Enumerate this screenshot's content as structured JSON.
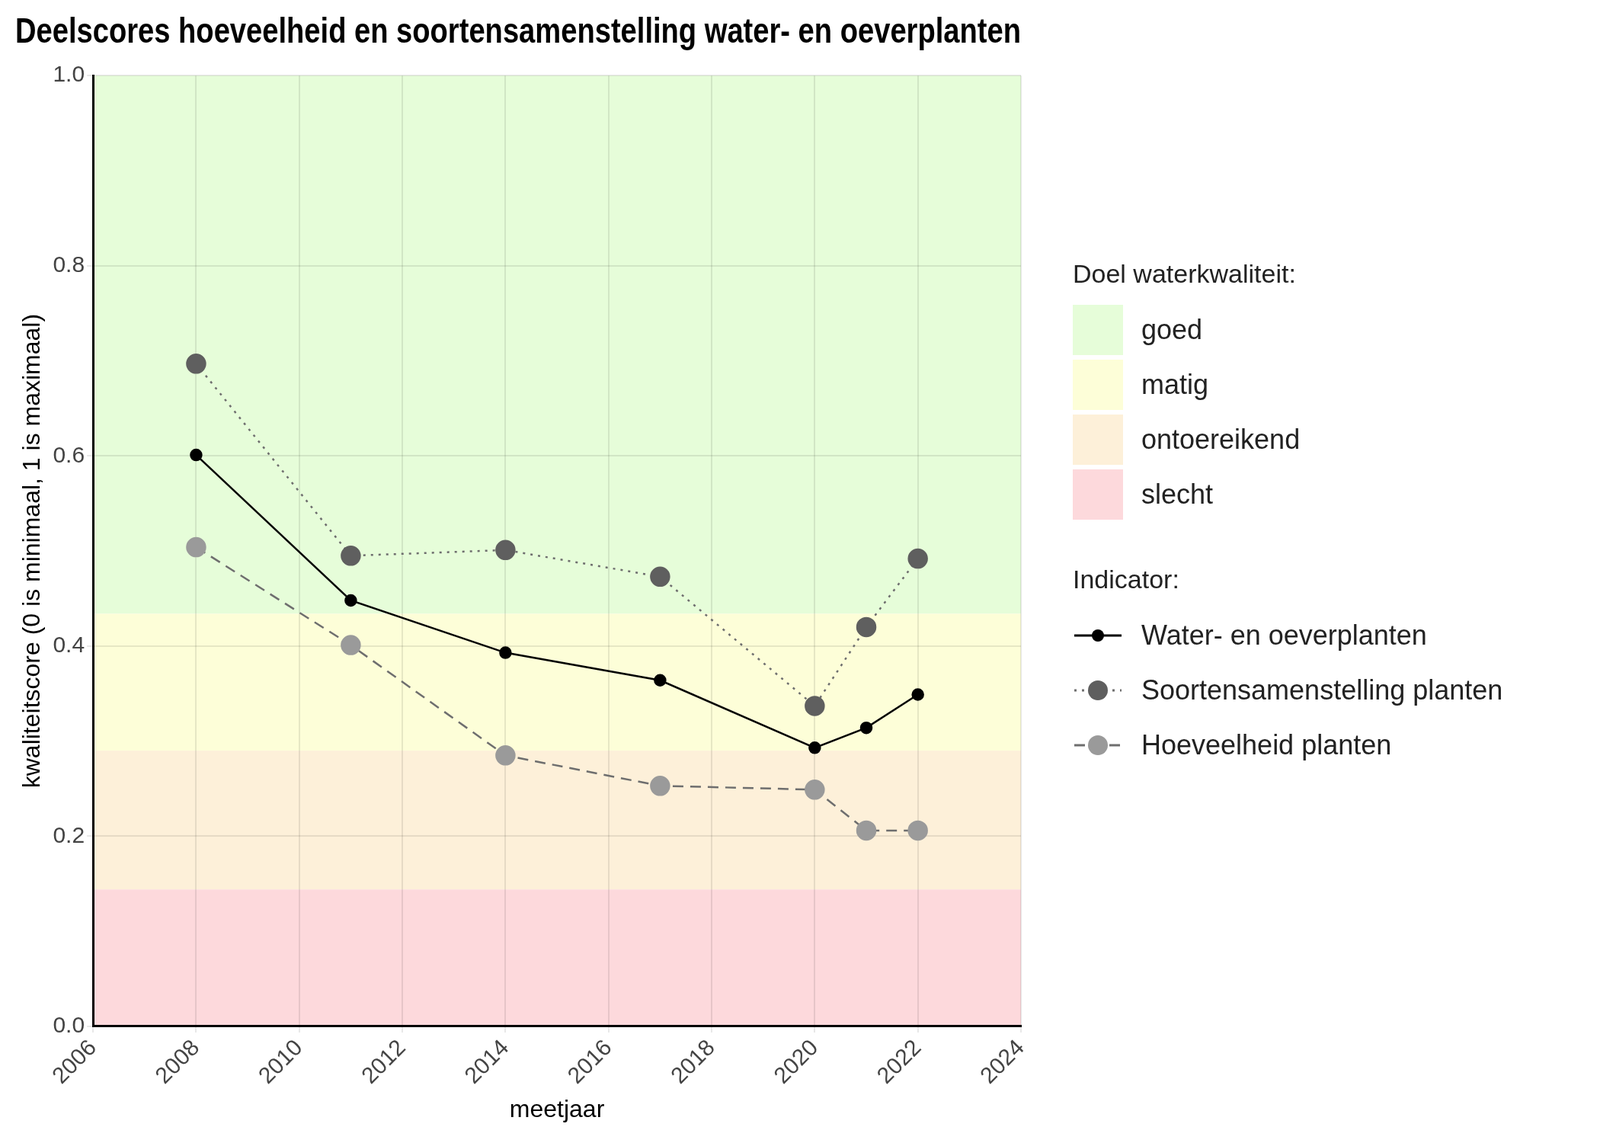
{
  "chart_data": {
    "type": "line",
    "title": "Deelscores hoeveelheid en soortensamenstelling water- en oeverplanten",
    "x_label": "meetjaar",
    "y_label": "kwaliteitscore (0 is minimaal, 1 is maximaal)",
    "x": [
      2008,
      2011,
      2014,
      2017,
      2020,
      2021,
      2022
    ],
    "series": [
      {
        "name": "Water- en oeverplanten",
        "color": "#000000",
        "marker": "circle",
        "line_style": "solid",
        "values": [
          0.601,
          0.448,
          0.393,
          0.364,
          0.293,
          0.314,
          0.349
        ]
      },
      {
        "name": "Soortensamenstelling planten",
        "color": "#5f5f5f",
        "marker": "circle",
        "line_style": "dotted",
        "values": [
          0.697,
          0.495,
          0.501,
          0.473,
          0.337,
          0.42,
          0.492
        ]
      },
      {
        "name": "Hoeveelheid planten",
        "color": "#9a9a9a",
        "marker": "circle",
        "line_style": "dashed",
        "values": [
          0.504,
          0.401,
          0.285,
          0.253,
          0.249,
          0.206,
          0.206
        ]
      }
    ],
    "xlim": [
      2006,
      2024
    ],
    "xticks": [
      2006,
      2008,
      2010,
      2012,
      2014,
      2016,
      2018,
      2020,
      2022,
      2024
    ],
    "ylim": [
      0,
      1
    ],
    "yticks": [
      {
        "value": 0,
        "label": "0.0"
      },
      0.2,
      0.4,
      0.6,
      0.8,
      {
        "value": 1,
        "label": "1.0"
      }
    ],
    "grid": true,
    "legend": "right",
    "bands_title": "Doel waterkwaliteit:",
    "bands": [
      {
        "label": "goed",
        "from": 0.434,
        "to": 1,
        "color": "#e6fdd9"
      },
      {
        "label": "matig",
        "from": 0.29,
        "to": 0.434,
        "color": "#fdfed8"
      },
      {
        "label": "ontoereikend",
        "from": 0.144,
        "to": 0.29,
        "color": "#fdf0d9"
      },
      {
        "label": "slecht",
        "from": 0,
        "to": 0.144,
        "color": "#fdd9dc"
      }
    ],
    "legend_title": "Indicator:"
  }
}
